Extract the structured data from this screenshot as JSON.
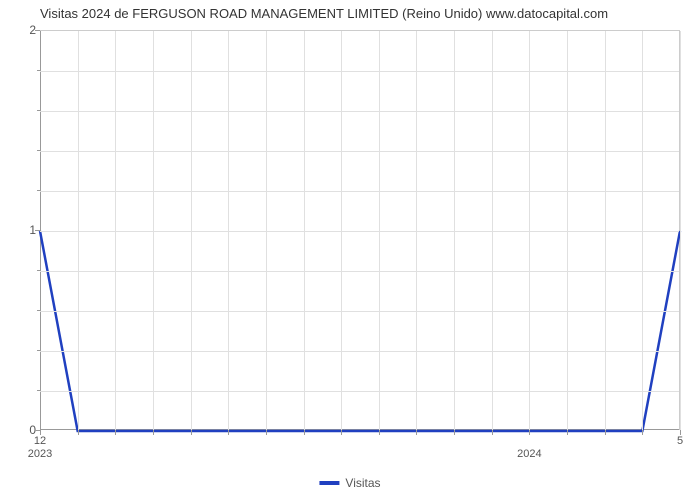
{
  "title": "Visitas 2024 de FERGUSON ROAD MANAGEMENT LIMITED (Reino Unido) www.datocapital.com",
  "chart": {
    "type": "line",
    "background_color": "#ffffff",
    "grid_color": "#e0e0e0",
    "axis_color": "#999999",
    "title_fontsize": 13,
    "label_fontsize": 12,
    "ylim": [
      0,
      2
    ],
    "y_ticks": [
      0,
      1,
      2
    ],
    "y_minor_count": 9,
    "x_categories_count": 18,
    "x_visible_labels": [
      {
        "idx": 0,
        "label": "12",
        "year": "2023"
      },
      {
        "idx": 13,
        "label": "",
        "year": "2024"
      },
      {
        "idx": 17,
        "label": "5",
        "year": ""
      }
    ],
    "grid_v_count": 17,
    "series": {
      "label": "Visitas",
      "color": "#2040c0",
      "line_width": 2.5,
      "points": [
        {
          "x": 0,
          "y": 1
        },
        {
          "x": 1,
          "y": 0
        },
        {
          "x": 2,
          "y": 0
        },
        {
          "x": 3,
          "y": 0
        },
        {
          "x": 4,
          "y": 0
        },
        {
          "x": 5,
          "y": 0
        },
        {
          "x": 6,
          "y": 0
        },
        {
          "x": 7,
          "y": 0
        },
        {
          "x": 8,
          "y": 0
        },
        {
          "x": 9,
          "y": 0
        },
        {
          "x": 10,
          "y": 0
        },
        {
          "x": 11,
          "y": 0
        },
        {
          "x": 12,
          "y": 0
        },
        {
          "x": 13,
          "y": 0
        },
        {
          "x": 14,
          "y": 0
        },
        {
          "x": 15,
          "y": 0
        },
        {
          "x": 16,
          "y": 0
        },
        {
          "x": 17,
          "y": 1
        }
      ]
    }
  }
}
